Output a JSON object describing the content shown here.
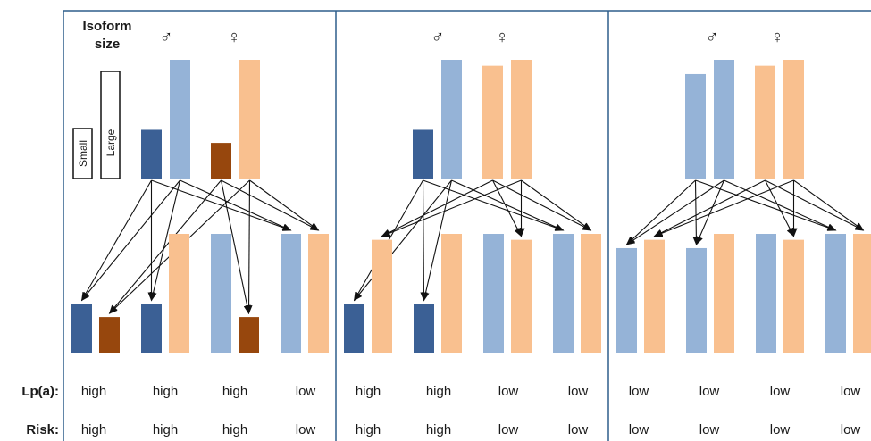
{
  "isoform_label_line1": "Isoform",
  "isoform_label_line2": "size",
  "small_label": "Small",
  "large_label": "Large",
  "male_symbol": "♂",
  "female_symbol": "♀",
  "lpa_row_label": "Lp(a):",
  "risk_row_label": "Risk:",
  "colors": {
    "male_small": "#3b6095",
    "male_large": "#95b3d7",
    "female_small": "#97470d",
    "female_large": "#f9c08f",
    "border": "#2e5e8c"
  },
  "panels": [
    {
      "parents": [
        {
          "sex": "male",
          "size": "small",
          "height": 0.41
        },
        {
          "sex": "male",
          "size": "large",
          "height": 1.0
        },
        {
          "sex": "female",
          "size": "small",
          "height": 0.3
        },
        {
          "sex": "female",
          "size": "large",
          "height": 1.0
        }
      ],
      "offspring": [
        {
          "lpa": "high",
          "risk": "high"
        },
        {
          "lpa": "high",
          "risk": "high"
        },
        {
          "lpa": "high",
          "risk": "high"
        },
        {
          "lpa": "low",
          "risk": "low"
        }
      ]
    },
    {
      "parents": [
        {
          "sex": "male",
          "size": "small",
          "height": 0.41
        },
        {
          "sex": "male",
          "size": "large",
          "height": 1.0
        },
        {
          "sex": "female",
          "size": "large",
          "height": 0.95
        },
        {
          "sex": "female",
          "size": "large",
          "height": 1.0
        }
      ],
      "offspring": [
        {
          "lpa": "high",
          "risk": "high"
        },
        {
          "lpa": "high",
          "risk": "high"
        },
        {
          "lpa": "low",
          "risk": "low"
        },
        {
          "lpa": "low",
          "risk": "low"
        }
      ]
    },
    {
      "parents": [
        {
          "sex": "male",
          "size": "large",
          "height": 0.88
        },
        {
          "sex": "male",
          "size": "large",
          "height": 1.0
        },
        {
          "sex": "female",
          "size": "large",
          "height": 0.95
        },
        {
          "sex": "female",
          "size": "large",
          "height": 1.0
        }
      ],
      "offspring": [
        {
          "lpa": "low",
          "risk": "low"
        },
        {
          "lpa": "low",
          "risk": "low"
        },
        {
          "lpa": "low",
          "risk": "low"
        },
        {
          "lpa": "low",
          "risk": "low"
        }
      ]
    }
  ],
  "offspring_bars": [
    [
      {
        "size": "small",
        "sex": "male"
      },
      {
        "size": "small",
        "sex": "female"
      }
    ],
    [
      {
        "size": "small",
        "sex": "male"
      },
      {
        "size": "large",
        "sex": "female"
      }
    ],
    [
      {
        "size": "large",
        "sex": "male"
      },
      {
        "size": "small",
        "sex": "female"
      }
    ],
    [
      {
        "size": "large",
        "sex": "male"
      },
      {
        "size": "large",
        "sex": "female"
      }
    ]
  ],
  "panel_offspring_bars": [
    [
      [
        {
          "size": "small",
          "sex": "male",
          "h": 0.41
        },
        {
          "size": "small",
          "sex": "female",
          "h": 0.3
        }
      ],
      [
        {
          "size": "small",
          "sex": "male",
          "h": 0.41
        },
        {
          "size": "large",
          "sex": "female",
          "h": 1.0
        }
      ],
      [
        {
          "size": "large",
          "sex": "male",
          "h": 1.0
        },
        {
          "size": "small",
          "sex": "female",
          "h": 0.3
        }
      ],
      [
        {
          "size": "large",
          "sex": "male",
          "h": 1.0
        },
        {
          "size": "large",
          "sex": "female",
          "h": 1.0
        }
      ]
    ],
    [
      [
        {
          "size": "small",
          "sex": "male",
          "h": 0.41
        },
        {
          "size": "large",
          "sex": "female",
          "h": 0.95
        }
      ],
      [
        {
          "size": "small",
          "sex": "male",
          "h": 0.41
        },
        {
          "size": "large",
          "sex": "female",
          "h": 1.0
        }
      ],
      [
        {
          "size": "large",
          "sex": "male",
          "h": 1.0
        },
        {
          "size": "large",
          "sex": "female",
          "h": 0.95
        }
      ],
      [
        {
          "size": "large",
          "sex": "male",
          "h": 1.0
        },
        {
          "size": "large",
          "sex": "female",
          "h": 1.0
        }
      ]
    ],
    [
      [
        {
          "size": "large",
          "sex": "male",
          "h": 0.88
        },
        {
          "size": "large",
          "sex": "female",
          "h": 0.95
        }
      ],
      [
        {
          "size": "large",
          "sex": "male",
          "h": 0.88
        },
        {
          "size": "large",
          "sex": "female",
          "h": 1.0
        }
      ],
      [
        {
          "size": "large",
          "sex": "male",
          "h": 1.0
        },
        {
          "size": "large",
          "sex": "female",
          "h": 0.95
        }
      ],
      [
        {
          "size": "large",
          "sex": "male",
          "h": 1.0
        },
        {
          "size": "large",
          "sex": "female",
          "h": 1.0
        }
      ]
    ]
  ],
  "arrows": [
    [
      [
        0,
        0
      ],
      [
        1,
        0
      ],
      [
        2,
        0
      ],
      [
        3,
        0
      ],
      [
        0,
        1
      ],
      [
        1,
        1
      ],
      [
        2,
        2
      ],
      [
        3,
        2
      ],
      [
        0,
        3
      ],
      [
        1,
        3
      ],
      [
        2,
        3
      ],
      [
        3,
        3
      ]
    ],
    [
      [
        0,
        0
      ],
      [
        1,
        0
      ],
      [
        2,
        0
      ],
      [
        3,
        0
      ],
      [
        0,
        1
      ],
      [
        1,
        1
      ],
      [
        2,
        2
      ],
      [
        3,
        2
      ],
      [
        0,
        3
      ],
      [
        1,
        3
      ],
      [
        2,
        3
      ],
      [
        3,
        3
      ]
    ],
    [
      [
        0,
        0
      ],
      [
        1,
        0
      ],
      [
        2,
        0
      ],
      [
        3,
        0
      ],
      [
        0,
        1
      ],
      [
        1,
        1
      ],
      [
        2,
        2
      ],
      [
        3,
        2
      ],
      [
        0,
        3
      ],
      [
        1,
        3
      ],
      [
        2,
        3
      ],
      [
        3,
        3
      ]
    ]
  ]
}
